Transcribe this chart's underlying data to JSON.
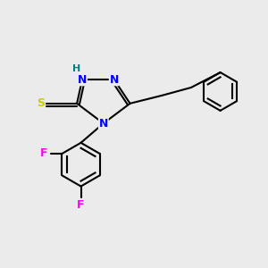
{
  "bg_color": "#ebebeb",
  "bond_color": "#000000",
  "bond_width": 1.5,
  "atom_colors": {
    "N": "#0000ff",
    "S": "#cccc00",
    "F": "#ff00ff",
    "H": "#008080",
    "C": "#000000"
  },
  "font_size": 9
}
